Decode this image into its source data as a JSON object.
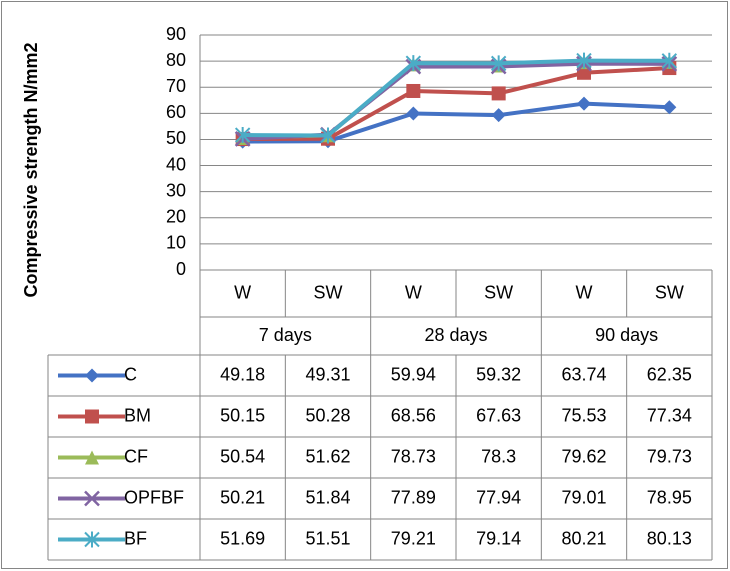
{
  "chart_data": {
    "type": "line",
    "y_label": "Compressive strength N/mm2",
    "categories": [
      "W",
      "SW",
      "W",
      "SW",
      "W",
      "SW"
    ],
    "category_groups": [
      "7 days",
      "28 days",
      "90 days"
    ],
    "ylim": [
      0,
      90
    ],
    "yticks": [
      0,
      10,
      20,
      30,
      40,
      50,
      60,
      70,
      80,
      90
    ],
    "grid": true,
    "series": [
      {
        "name": "C",
        "color": "#4472c4",
        "marker": "diamond",
        "values": [
          49.18,
          49.31,
          59.94,
          59.32,
          63.74,
          62.35
        ]
      },
      {
        "name": "BM",
        "color": "#c0504d",
        "marker": "square",
        "values": [
          50.15,
          50.28,
          68.56,
          67.63,
          75.53,
          77.34
        ]
      },
      {
        "name": "CF",
        "color": "#9bbb59",
        "marker": "triangle",
        "values": [
          50.54,
          51.62,
          78.73,
          78.3,
          79.62,
          79.73
        ]
      },
      {
        "name": "OPFBF",
        "color": "#8064a2",
        "marker": "x",
        "values": [
          50.21,
          51.84,
          77.89,
          77.94,
          79.01,
          78.95
        ]
      },
      {
        "name": "BF",
        "color": "#4bacc6",
        "marker": "star",
        "values": [
          51.69,
          51.51,
          79.21,
          79.14,
          80.21,
          80.13
        ]
      }
    ]
  }
}
